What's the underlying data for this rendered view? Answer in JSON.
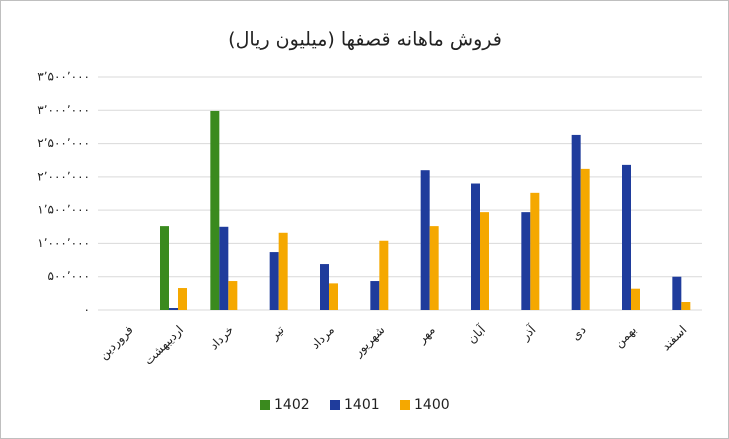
{
  "chart_data": {
    "type": "bar",
    "title": "فروش ماهانه قصفها (میلیون ریال)",
    "categories": [
      "فروردین",
      "اردیبهشت",
      "خرداد",
      "تیر",
      "مرداد",
      "شهریور",
      "مهر",
      "آبان",
      "آذر",
      "دی",
      "بهمن",
      "اسفند"
    ],
    "series": [
      {
        "name": "1402",
        "color": "#3a8a1e",
        "values": [
          null,
          1260000,
          2990000,
          null,
          null,
          null,
          null,
          null,
          null,
          null,
          null,
          null
        ]
      },
      {
        "name": "1401",
        "color": "#1f3c9c",
        "values": [
          null,
          30000,
          1250000,
          870000,
          690000,
          435000,
          2100000,
          1900000,
          1470000,
          2630000,
          2180000,
          500000
        ]
      },
      {
        "name": "1400",
        "color": "#f5a800",
        "values": [
          null,
          330000,
          435000,
          1160000,
          400000,
          1040000,
          1260000,
          1470000,
          1760000,
          2120000,
          320000,
          120000
        ]
      }
    ],
    "ylim": [
      0,
      3500000
    ],
    "yticks": [
      {
        "value": 0,
        "label": "۰"
      },
      {
        "value": 500000,
        "label": "۵۰۰٬۰۰۰"
      },
      {
        "value": 1000000,
        "label": "۱٬۰۰۰٬۰۰۰"
      },
      {
        "value": 1500000,
        "label": "۱٬۵۰۰٬۰۰۰"
      },
      {
        "value": 2000000,
        "label": "۲٬۰۰۰٬۰۰۰"
      },
      {
        "value": 2500000,
        "label": "۲٬۵۰۰٬۰۰۰"
      },
      {
        "value": 3000000,
        "label": "۳٬۰۰۰٬۰۰۰"
      },
      {
        "value": 3500000,
        "label": "۳٬۵۰۰٬۰۰۰"
      }
    ],
    "grid": true,
    "legend": "bottom"
  }
}
